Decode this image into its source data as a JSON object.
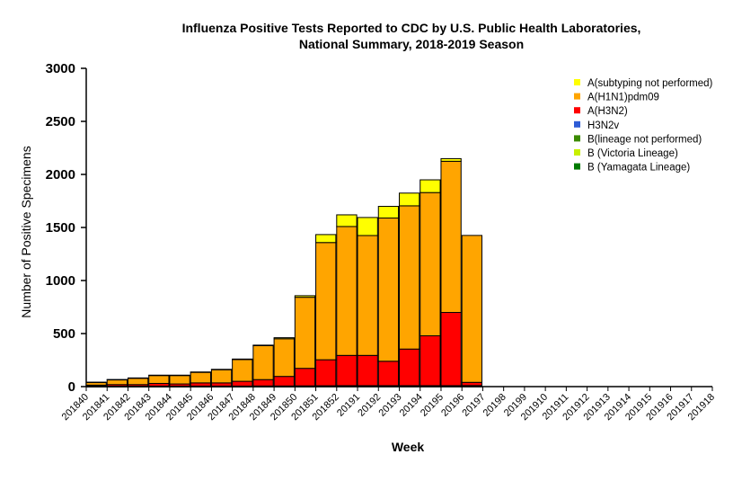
{
  "chart_data": {
    "type": "bar",
    "stacked": true,
    "title_line1": "Influenza Positive Tests Reported to CDC by U.S. Public Health Laboratories,",
    "title_line2": "National Summary, 2018-2019 Season",
    "xlabel": "Week",
    "ylabel": "Number of Positive Specimens",
    "ylim": [
      0,
      3000
    ],
    "yticks": [
      0,
      500,
      1000,
      1500,
      2000,
      2500,
      3000
    ],
    "grid": false,
    "legend_position": "top-right",
    "categories": [
      "201840",
      "201841",
      "201842",
      "201843",
      "201844",
      "201845",
      "201846",
      "201847",
      "201848",
      "201849",
      "201850",
      "201851",
      "201852",
      "20191",
      "20192",
      "20193",
      "20194",
      "20195",
      "20196",
      "20197",
      "20198",
      "20199",
      "201910",
      "201911",
      "201912",
      "201913",
      "201914",
      "201915",
      "201916",
      "201917",
      "201918"
    ],
    "series": [
      {
        "name": "B (Yamagata Lineage)",
        "color": "#007a00",
        "values": [
          0,
          0,
          0,
          0,
          0,
          0,
          0,
          0,
          0,
          0,
          0,
          0,
          0,
          0,
          0,
          0,
          0,
          0,
          0,
          null,
          null,
          null,
          null,
          null,
          null,
          null,
          null,
          null,
          null,
          null,
          null
        ]
      },
      {
        "name": "B (Victoria Lineage)",
        "color": "#c8f000",
        "values": [
          1,
          1,
          1,
          1,
          1,
          1,
          1,
          1,
          1,
          1,
          1,
          2,
          2,
          2,
          2,
          2,
          2,
          2,
          2,
          null,
          null,
          null,
          null,
          null,
          null,
          null,
          null,
          null,
          null,
          null,
          null
        ]
      },
      {
        "name": "B(lineage not performed)",
        "color": "#3a8a00",
        "values": [
          3,
          3,
          3,
          4,
          4,
          4,
          4,
          4,
          5,
          5,
          6,
          6,
          7,
          7,
          7,
          7,
          7,
          7,
          8,
          null,
          null,
          null,
          null,
          null,
          null,
          null,
          null,
          null,
          null,
          null,
          null
        ]
      },
      {
        "name": "H3N2v",
        "color": "#2e5cd6",
        "values": [
          0,
          0,
          0,
          0,
          0,
          0,
          0,
          0,
          0,
          0,
          0,
          0,
          0,
          0,
          0,
          0,
          0,
          0,
          0,
          null,
          null,
          null,
          null,
          null,
          null,
          null,
          null,
          null,
          null,
          null,
          null
        ]
      },
      {
        "name": "A(H3N2)",
        "color": "#ff0000",
        "values": [
          10,
          15,
          15,
          25,
          20,
          30,
          30,
          45,
          60,
          90,
          165,
          245,
          285,
          285,
          230,
          345,
          470,
          690,
          30,
          null,
          null,
          null,
          null,
          null,
          null,
          null,
          null,
          null,
          null,
          null,
          null
        ]
      },
      {
        "name": "A(H1N1)pdm09",
        "color": "#ffa500",
        "values": [
          25,
          45,
          60,
          75,
          80,
          100,
          125,
          205,
          320,
          355,
          670,
          1105,
          1215,
          1130,
          1350,
          1350,
          1350,
          1425,
          1385,
          null,
          null,
          null,
          null,
          null,
          null,
          null,
          null,
          null,
          null,
          null,
          null
        ]
      },
      {
        "name": "A(subtyping not performed)",
        "color": "#ffff00",
        "values": [
          3,
          3,
          3,
          3,
          3,
          3,
          3,
          5,
          5,
          10,
          15,
          75,
          110,
          170,
          110,
          120,
          120,
          25,
          0,
          null,
          null,
          null,
          null,
          null,
          null,
          null,
          null,
          null,
          null,
          null,
          null
        ]
      }
    ],
    "legend_order": [
      "A(subtyping not performed)",
      "A(H1N1)pdm09",
      "A(H3N2)",
      "H3N2v",
      "B(lineage not performed)",
      "B (Victoria Lineage)",
      "B (Yamagata Lineage)"
    ]
  }
}
